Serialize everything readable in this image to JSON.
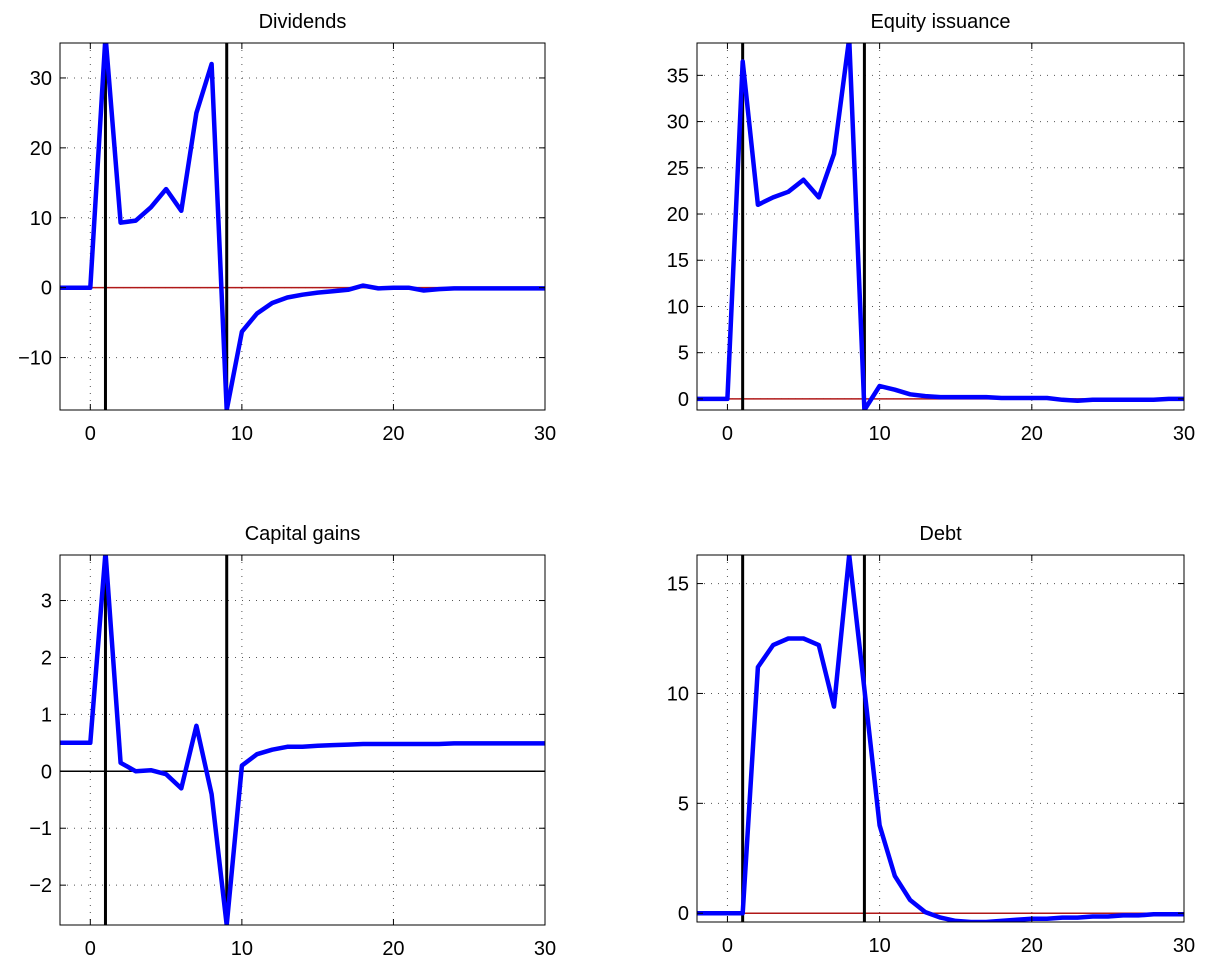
{
  "chart_data": [
    {
      "type": "line",
      "title": "Dividends",
      "xlabel": "",
      "ylabel": "",
      "xlim": [
        -2,
        30
      ],
      "ylim": [
        -17.5,
        35
      ],
      "xticks": [
        0,
        10,
        20,
        30
      ],
      "yticks": [
        -10,
        0,
        10,
        20,
        30
      ],
      "ytick_labels": [
        "−10",
        "0",
        "10",
        "20",
        "30"
      ],
      "grid": true,
      "vlines": [
        1,
        9
      ],
      "zero_line_color": "#b01818",
      "series": [
        {
          "color": "#0000ff",
          "x": [
            -2,
            -1,
            0,
            1,
            2,
            3,
            4,
            5,
            6,
            7,
            8,
            9,
            10,
            11,
            12,
            13,
            14,
            15,
            16,
            17,
            18,
            19,
            20,
            21,
            22,
            23,
            24,
            25,
            26,
            27,
            28,
            29,
            30
          ],
          "values": [
            0,
            0,
            0,
            36,
            9.3,
            9.6,
            11.5,
            14.1,
            11,
            25,
            32,
            -17.5,
            -6.3,
            -3.7,
            -2.2,
            -1.4,
            -1,
            -0.7,
            -0.5,
            -0.3,
            0.3,
            -0.1,
            0,
            0,
            -0.4,
            -0.2,
            -0.1,
            -0.1,
            -0.1,
            -0.1,
            -0.1,
            -0.1,
            -0.1
          ]
        }
      ]
    },
    {
      "type": "line",
      "title": "Equity issuance",
      "xlabel": "",
      "ylabel": "",
      "xlim": [
        -2,
        30
      ],
      "ylim": [
        -1.2,
        38.5
      ],
      "xticks": [
        0,
        10,
        20,
        30
      ],
      "yticks": [
        0,
        5,
        10,
        15,
        20,
        25,
        30,
        35
      ],
      "ytick_labels": [
        "0",
        "5",
        "10",
        "15",
        "20",
        "25",
        "30",
        "35"
      ],
      "grid": true,
      "vlines": [
        1,
        9
      ],
      "zero_line_color": "#b01818",
      "series": [
        {
          "color": "#0000ff",
          "x": [
            -2,
            -1,
            0,
            1,
            2,
            3,
            4,
            5,
            6,
            7,
            8,
            9,
            10,
            11,
            12,
            13,
            14,
            15,
            16,
            17,
            18,
            19,
            20,
            21,
            22,
            23,
            24,
            25,
            26,
            27,
            28,
            29,
            30
          ],
          "values": [
            0,
            0,
            0,
            36.5,
            21,
            21.8,
            22.4,
            23.7,
            21.8,
            26.5,
            39,
            -1.2,
            1.4,
            1,
            0.5,
            0.3,
            0.2,
            0.2,
            0.2,
            0.2,
            0.1,
            0.1,
            0.1,
            0.1,
            -0.1,
            -0.2,
            -0.1,
            -0.1,
            -0.1,
            -0.1,
            -0.1,
            0,
            0
          ]
        }
      ]
    },
    {
      "type": "line",
      "title": "Capital gains",
      "xlabel": "",
      "ylabel": "",
      "xlim": [
        -2,
        30
      ],
      "ylim": [
        -2.7,
        3.8
      ],
      "xticks": [
        0,
        10,
        20,
        30
      ],
      "yticks": [
        -2,
        -1,
        0,
        1,
        2,
        3
      ],
      "ytick_labels": [
        "−2",
        "−1",
        "0",
        "1",
        "2",
        "3"
      ],
      "grid": true,
      "vlines": [
        1,
        9
      ],
      "zero_line_color": "#000000",
      "series": [
        {
          "color": "#0000ff",
          "x": [
            -2,
            -1,
            0,
            1,
            2,
            3,
            4,
            5,
            6,
            7,
            8,
            9,
            10,
            11,
            12,
            13,
            14,
            15,
            16,
            17,
            18,
            19,
            20,
            21,
            22,
            23,
            24,
            25,
            26,
            27,
            28,
            29,
            30
          ],
          "values": [
            0.5,
            0.5,
            0.5,
            3.85,
            0.15,
            0,
            0.02,
            -0.05,
            -0.3,
            0.8,
            -0.4,
            -2.7,
            0.1,
            0.3,
            0.38,
            0.43,
            0.43,
            0.45,
            0.46,
            0.47,
            0.48,
            0.48,
            0.48,
            0.48,
            0.48,
            0.48,
            0.49,
            0.49,
            0.49,
            0.49,
            0.49,
            0.49,
            0.49
          ]
        }
      ]
    },
    {
      "type": "line",
      "title": "Debt",
      "xlabel": "",
      "ylabel": "",
      "xlim": [
        -2,
        30
      ],
      "ylim": [
        -0.4,
        16.3
      ],
      "xticks": [
        0,
        10,
        20,
        30
      ],
      "yticks": [
        0,
        5,
        10,
        15
      ],
      "ytick_labels": [
        "0",
        "5",
        "10",
        "15"
      ],
      "grid": true,
      "vlines": [
        1,
        9
      ],
      "zero_line_color": "#b01818",
      "series": [
        {
          "color": "#0000ff",
          "x": [
            -2,
            -1,
            0,
            1,
            2,
            3,
            4,
            5,
            6,
            7,
            8,
            9,
            10,
            11,
            12,
            13,
            14,
            15,
            16,
            17,
            18,
            19,
            20,
            21,
            22,
            23,
            24,
            25,
            26,
            27,
            28,
            29,
            30
          ],
          "values": [
            0,
            0,
            0,
            0,
            11.2,
            12.2,
            12.5,
            12.5,
            12.2,
            9.4,
            16.3,
            10.2,
            4,
            1.7,
            0.6,
            0.05,
            -0.2,
            -0.35,
            -0.4,
            -0.4,
            -0.35,
            -0.3,
            -0.25,
            -0.25,
            -0.2,
            -0.2,
            -0.15,
            -0.15,
            -0.1,
            -0.1,
            -0.05,
            -0.05,
            -0.05
          ]
        }
      ]
    }
  ]
}
